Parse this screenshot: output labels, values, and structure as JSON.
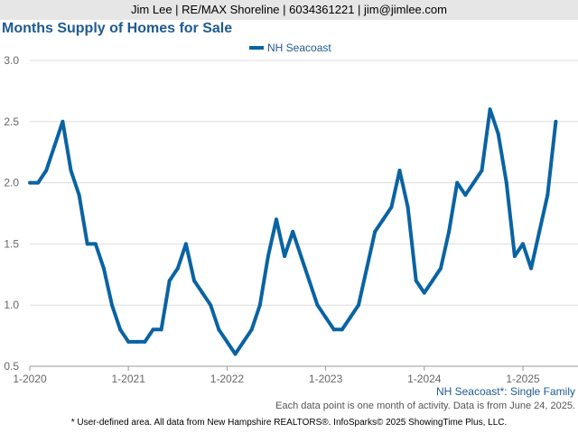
{
  "header": {
    "text": "Jim Lee | RE/MAX Shoreline | 6034361221 | jim@jimlee.com"
  },
  "colors": {
    "series": "#0a63a3",
    "title": "#1f5a91",
    "header_bg": "#e6e6e6",
    "grid": "#dddddd"
  },
  "chart_data": {
    "type": "line",
    "title": "Months Supply of Homes for Sale",
    "xlabel": "",
    "ylabel": "",
    "ylim": [
      0.5,
      3.0
    ],
    "yticks": [
      "0.5",
      "1.0",
      "1.5",
      "2.0",
      "2.5",
      "3.0"
    ],
    "xticks": [
      "1-2020",
      "1-2021",
      "1-2022",
      "1-2023",
      "1-2024",
      "1-2025"
    ],
    "grid": true,
    "legend_position": "top-center",
    "x": [
      "2020-01",
      "2020-02",
      "2020-03",
      "2020-04",
      "2020-05",
      "2020-06",
      "2020-07",
      "2020-08",
      "2020-09",
      "2020-10",
      "2020-11",
      "2020-12",
      "2021-01",
      "2021-02",
      "2021-03",
      "2021-04",
      "2021-05",
      "2021-06",
      "2021-07",
      "2021-08",
      "2021-09",
      "2021-10",
      "2021-11",
      "2021-12",
      "2022-01",
      "2022-02",
      "2022-03",
      "2022-04",
      "2022-05",
      "2022-06",
      "2022-07",
      "2022-08",
      "2022-09",
      "2022-10",
      "2022-11",
      "2022-12",
      "2023-01",
      "2023-02",
      "2023-03",
      "2023-04",
      "2023-05",
      "2023-06",
      "2023-07",
      "2023-08",
      "2023-09",
      "2023-10",
      "2023-11",
      "2023-12",
      "2024-01",
      "2024-02",
      "2024-03",
      "2024-04",
      "2024-05",
      "2024-06",
      "2024-07",
      "2024-08",
      "2024-09",
      "2024-10",
      "2024-11",
      "2024-12",
      "2025-01",
      "2025-02",
      "2025-03",
      "2025-04",
      "2025-05"
    ],
    "series": [
      {
        "name": "NH Seacoast",
        "values": [
          2.0,
          2.0,
          2.1,
          2.3,
          2.5,
          2.1,
          1.9,
          1.5,
          1.5,
          1.3,
          1.0,
          0.8,
          0.7,
          0.7,
          0.7,
          0.8,
          0.8,
          1.2,
          1.3,
          1.5,
          1.2,
          1.1,
          1.0,
          0.8,
          0.7,
          0.6,
          0.7,
          0.8,
          1.0,
          1.4,
          1.7,
          1.4,
          1.6,
          1.4,
          1.2,
          1.0,
          0.9,
          0.8,
          0.8,
          0.9,
          1.0,
          1.3,
          1.6,
          1.7,
          1.8,
          2.1,
          1.8,
          1.2,
          1.1,
          1.2,
          1.3,
          1.6,
          2.0,
          1.9,
          2.0,
          2.1,
          2.6,
          2.4,
          2.0,
          1.4,
          1.5,
          1.3,
          1.6,
          1.9,
          2.5
        ]
      }
    ]
  },
  "series_label": "NH Seacoast*: Single Family",
  "note": "Each data point is one month of activity. Data is from June 24, 2025.",
  "footer": "* User-defined area. All data from New Hampshire REALTORS®. InfoSparks© 2025 ShowingTime Plus, LLC."
}
